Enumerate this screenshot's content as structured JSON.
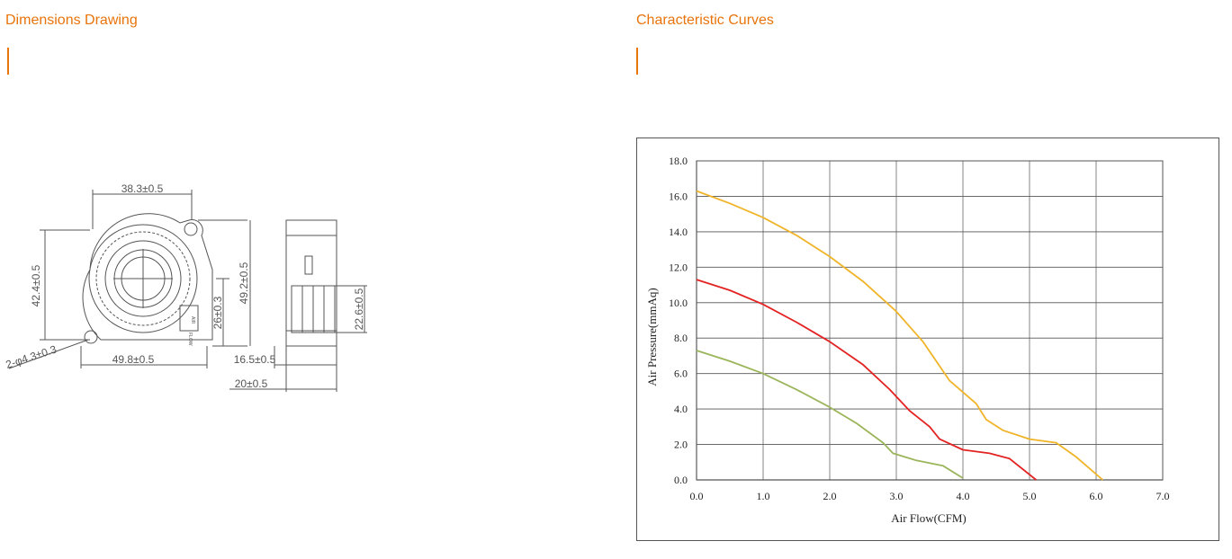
{
  "left_section": {
    "title": "Dimensions Drawing"
  },
  "right_section": {
    "title": "Characteristic Curves"
  },
  "accent_color": "#e8740c",
  "drawing": {
    "dim_top_width": "38.3±0.5",
    "dim_height_left": "42.4±0.5",
    "dim_height_total": "49.2±0.5",
    "dim_height_outlet": "26±0.3",
    "dim_hole": "2-φ4.3±0.3",
    "dim_base_width": "49.8±0.5",
    "dim_side_width": "16.5±0.5",
    "dim_side_total": "20±0.5",
    "dim_side_height": "22.6±0.5",
    "label_line1": "AIR",
    "label_line2": "FLOW"
  },
  "chart_data": {
    "type": "line",
    "xlabel": "Air Flow(CFM)",
    "ylabel": "Air Pressure(mmAq)",
    "xlim": [
      0,
      7
    ],
    "ylim": [
      0,
      18
    ],
    "x_ticks": [
      "0.0",
      "1.0",
      "2.0",
      "3.0",
      "4.0",
      "5.0",
      "6.0",
      "7.0"
    ],
    "y_ticks": [
      "0.0",
      "2.0",
      "4.0",
      "6.0",
      "8.0",
      "10.0",
      "12.0",
      "14.0",
      "16.0",
      "18.0"
    ],
    "grid": true,
    "series": [
      {
        "color": "#f0b429",
        "points": [
          [
            0,
            16.3
          ],
          [
            0.5,
            15.6
          ],
          [
            1.0,
            14.8
          ],
          [
            1.5,
            13.8
          ],
          [
            2.0,
            12.6
          ],
          [
            2.5,
            11.2
          ],
          [
            3.0,
            9.5
          ],
          [
            3.4,
            7.8
          ],
          [
            3.8,
            5.6
          ],
          [
            4.2,
            4.3
          ],
          [
            4.35,
            3.4
          ],
          [
            4.6,
            2.8
          ],
          [
            5.0,
            2.3
          ],
          [
            5.4,
            2.1
          ],
          [
            5.7,
            1.3
          ],
          [
            6.1,
            0.0
          ]
        ]
      },
      {
        "color": "#e32222",
        "points": [
          [
            0,
            11.3
          ],
          [
            0.5,
            10.7
          ],
          [
            1.0,
            9.9
          ],
          [
            1.5,
            8.9
          ],
          [
            2.0,
            7.8
          ],
          [
            2.5,
            6.5
          ],
          [
            2.9,
            5.1
          ],
          [
            3.2,
            3.9
          ],
          [
            3.5,
            3.0
          ],
          [
            3.65,
            2.3
          ],
          [
            4.0,
            1.7
          ],
          [
            4.4,
            1.5
          ],
          [
            4.7,
            1.2
          ],
          [
            5.1,
            0.0
          ]
        ]
      },
      {
        "color": "#9bb55a",
        "points": [
          [
            0,
            7.3
          ],
          [
            0.5,
            6.7
          ],
          [
            1.0,
            6.0
          ],
          [
            1.5,
            5.1
          ],
          [
            2.0,
            4.1
          ],
          [
            2.4,
            3.2
          ],
          [
            2.8,
            2.1
          ],
          [
            2.95,
            1.5
          ],
          [
            3.3,
            1.1
          ],
          [
            3.7,
            0.8
          ],
          [
            4.0,
            0.1
          ]
        ]
      }
    ]
  }
}
